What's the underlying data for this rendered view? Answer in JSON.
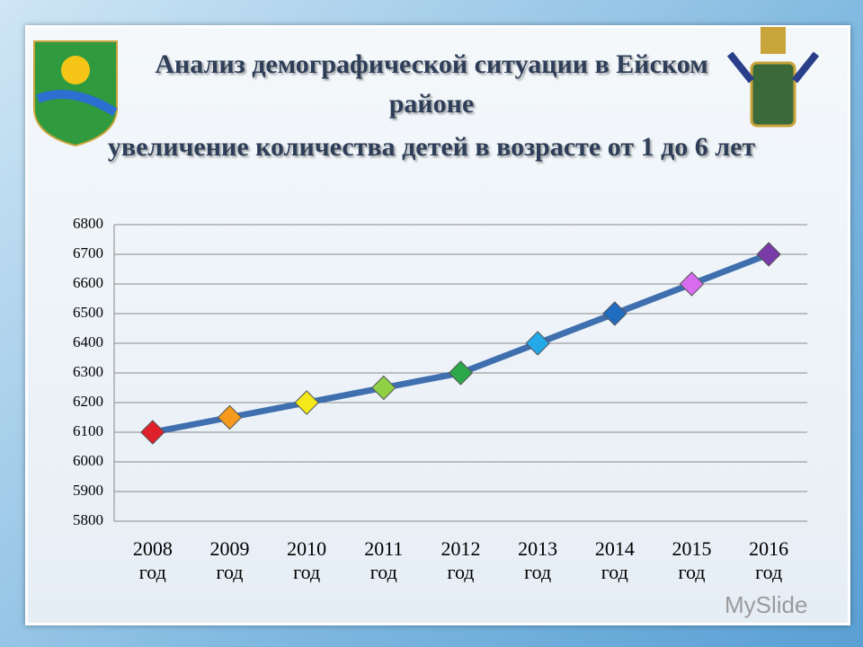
{
  "chart_data": {
    "type": "line",
    "title": "Анализ демографической ситуации в Ейском районе",
    "subtitle": "увеличение количества детей в возрасте от 1 до 6 лет",
    "categories": [
      "2008 год",
      "2009 год",
      "2010 год",
      "2011 год",
      "2012 год",
      "2013 год",
      "2014 год",
      "2015 год",
      "2016 год"
    ],
    "values": [
      6100,
      6150,
      6200,
      6250,
      6300,
      6400,
      6500,
      6600,
      6700
    ],
    "color": "#3f6fae",
    "marker_colors": [
      "#e0202a",
      "#f59a1c",
      "#f2e81a",
      "#8fd045",
      "#2aa84a",
      "#24a8e8",
      "#1f6cc0",
      "#d86cf0",
      "#7a3aa8"
    ],
    "ylim": [
      5800,
      6800
    ],
    "yticks": [
      5800,
      5900,
      6000,
      6100,
      6200,
      6300,
      6400,
      6500,
      6600,
      6700,
      6800
    ],
    "grid": true
  },
  "watermark": "MySlide"
}
